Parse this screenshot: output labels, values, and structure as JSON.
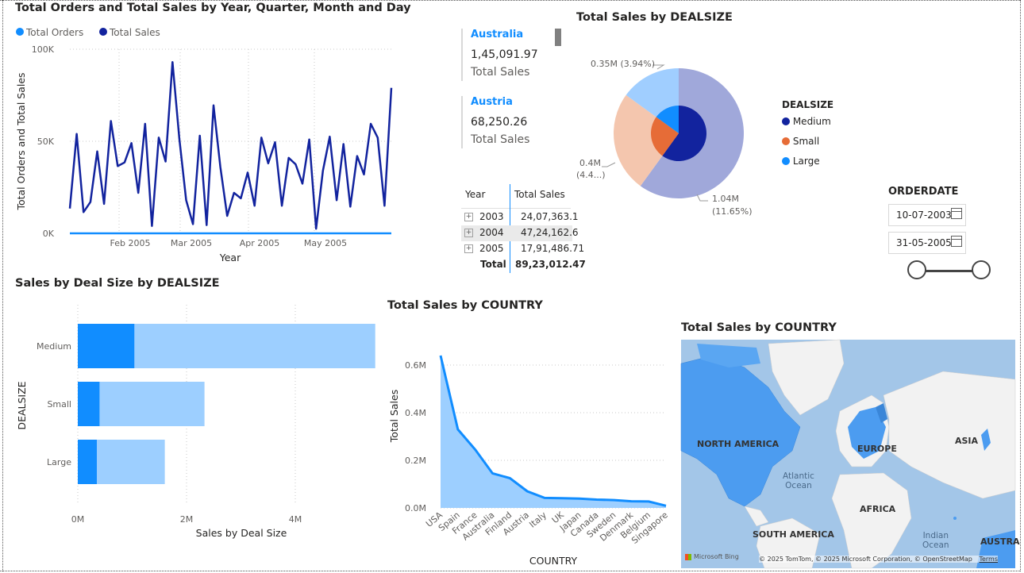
{
  "line_visual": {
    "title": "Total Orders and Total Sales by Year, Quarter, Month and Day",
    "legend": [
      {
        "name": "Total Orders",
        "color": "#118dff"
      },
      {
        "name": "Total Sales",
        "color": "#12239e"
      }
    ]
  },
  "cards": [
    {
      "country": "Australia",
      "value": "1,45,091.97",
      "label": "Total Sales"
    },
    {
      "country": "Austria",
      "value": "68,250.26",
      "label": "Total Sales"
    }
  ],
  "matrix": {
    "headers": [
      "Year",
      "Total Sales"
    ],
    "rows": [
      {
        "year": "2003",
        "sales": "24,07,363.1"
      },
      {
        "year": "2004",
        "sales": "47,24,162.6"
      },
      {
        "year": "2005",
        "sales": "17,91,486.71"
      }
    ],
    "total_label": "Total",
    "total_value": "89,23,012.47"
  },
  "donut_visual": {
    "title": "Total Sales by DEALSIZE",
    "legend_title": "DEALSIZE",
    "legend": [
      {
        "name": "Medium",
        "color": "#12239e"
      },
      {
        "name": "Small",
        "color": "#e66c37"
      },
      {
        "name": "Large",
        "color": "#118dff"
      }
    ],
    "labels": {
      "top": "0.35M (3.94%)",
      "left_1": "0.4M",
      "left_2": "(4.4...)",
      "right_1": "1.04M",
      "right_2": "(11.65%)"
    }
  },
  "date_slicer": {
    "title": "ORDERDATE",
    "start": "10-07-2003",
    "end": "31-05-2005"
  },
  "bar_visual": {
    "title": "Sales by Deal Size by DEALSIZE"
  },
  "area_visual": {
    "title": "Total Sales by COUNTRY"
  },
  "map_visual": {
    "title": "Total Sales by COUNTRY",
    "labels": [
      "NORTH AMERICA",
      "EUROPE",
      "ASIA",
      "AFRICA",
      "SOUTH AMERICA",
      "AUSTRA"
    ],
    "oceans": [
      "Atlantic",
      "Ocean",
      "Indian",
      "Ocean"
    ],
    "bing": "Microsoft Bing",
    "attribution": "© 2025 TomTom, © 2025 Microsoft Corporation, © OpenStreetMap",
    "terms": "Terms"
  },
  "chart_data": [
    {
      "type": "line",
      "title": "Total Orders and Total Sales by Year, Quarter, Month and Day",
      "xlabel": "Year",
      "ylabel": "Total Orders and Total Sales",
      "x_ticks": [
        "Feb 2005",
        "Mar 2005",
        "Apr 2005",
        "May 2005"
      ],
      "y_ticks": [
        "0K",
        "50K",
        "100K"
      ],
      "ylim": [
        0,
        100000
      ],
      "grid": true,
      "legend_position": "top-left",
      "series": [
        {
          "name": "Total Sales",
          "color": "#12239e",
          "values": [
            13500,
            54000,
            11500,
            17000,
            44500,
            16000,
            61000,
            36500,
            38500,
            49000,
            22000,
            59500,
            4000,
            52000,
            39000,
            93000,
            51500,
            18000,
            5000,
            53000,
            4500,
            69500,
            36000,
            9500,
            22000,
            19000,
            33000,
            15000,
            52000,
            38000,
            49500,
            15000,
            41000,
            37500,
            27000,
            51000,
            2500,
            34000,
            52500,
            18000,
            48500,
            14500,
            42000,
            32000,
            59500,
            52000,
            15000,
            79000
          ]
        },
        {
          "name": "Total Orders",
          "color": "#118dff",
          "values": [
            0,
            0
          ]
        }
      ]
    },
    {
      "type": "bar",
      "orientation": "horizontal",
      "title": "Sales by Deal Size by DEALSIZE",
      "xlabel": "Sales by Deal Size",
      "ylabel": "DEALSIZE",
      "categories": [
        "Medium",
        "Small",
        "Large"
      ],
      "x_ticks": [
        "0M",
        "2M",
        "4M"
      ],
      "xlim": [
        0,
        5.6
      ],
      "series": [
        {
          "name": "Dark segment",
          "color": "#118dff",
          "values": [
            1.04,
            0.4,
            0.35
          ]
        },
        {
          "name": "Light segment",
          "color": "#9dcfff",
          "values": [
            4.43,
            1.93,
            1.25
          ]
        }
      ]
    },
    {
      "type": "area",
      "title": "Total Sales by COUNTRY",
      "xlabel": "COUNTRY",
      "ylabel": "Total Sales",
      "categories": [
        "USA",
        "Spain",
        "France",
        "Australia",
        "Finland",
        "Austria",
        "Italy",
        "UK",
        "Japan",
        "Canada",
        "Sweden",
        "Denmark",
        "Belgium",
        "Singapore"
      ],
      "visible_tick_labels": [
        "USA",
        "Spain",
        "France",
        "Australia",
        "Finland",
        "Austria",
        "Italy",
        "UK",
        "Japan",
        "Canada",
        "Sweden",
        "Denmark",
        "Belgium",
        "Singapore"
      ],
      "y_ticks": [
        "0.0M",
        "0.2M",
        "0.4M",
        "0.6M"
      ],
      "ylim": [
        0,
        0.7
      ],
      "values": [
        0.64,
        0.33,
        0.245,
        0.145,
        0.125,
        0.07,
        0.042,
        0.041,
        0.039,
        0.035,
        0.033,
        0.028,
        0.027,
        0.009
      ],
      "color": "#118dff"
    },
    {
      "type": "pie",
      "title": "Total Sales by DEALSIZE",
      "inner_ring": [
        {
          "name": "Medium",
          "value": 60,
          "color": "#12239e"
        },
        {
          "name": "Small",
          "value": 25,
          "color": "#e66c37"
        },
        {
          "name": "Large",
          "value": 15,
          "color": "#118dff"
        }
      ],
      "outer_ring": [
        {
          "name": "Medium",
          "value": 60,
          "color": "#a0a8da"
        },
        {
          "name": "Small",
          "value": 25,
          "color": "#f4c6ae"
        },
        {
          "name": "Large",
          "value": 15,
          "color": "#a0ceff"
        }
      ]
    }
  ]
}
